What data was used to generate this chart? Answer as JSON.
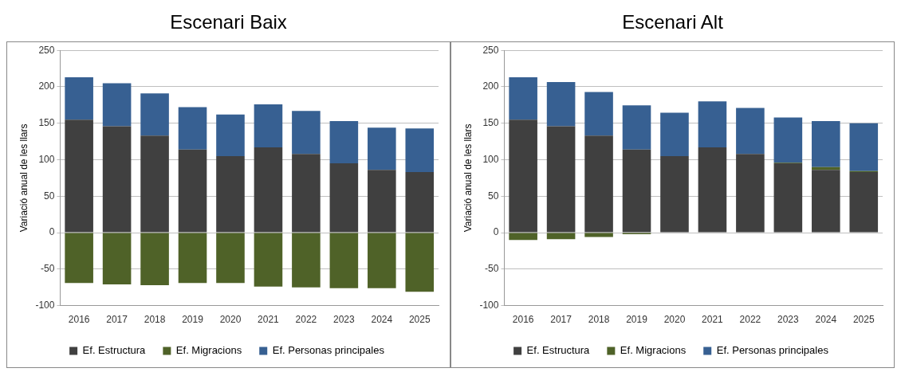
{
  "chart_data": [
    {
      "type": "bar",
      "title": "Escenari Baix",
      "ylabel": "Variació anual de les llars",
      "categories": [
        "2016",
        "2017",
        "2018",
        "2019",
        "2020",
        "2021",
        "2022",
        "2023",
        "2024",
        "2025"
      ],
      "stacked": true,
      "series": [
        {
          "name": "Ef. Estructura",
          "color": "#404040",
          "values": [
            155,
            146,
            133,
            114,
            105,
            117,
            108,
            95,
            86,
            83
          ]
        },
        {
          "name": "Ef. Migracions",
          "color": "#4f6228",
          "values": [
            -69,
            -71,
            -72,
            -69,
            -69,
            -74,
            -75,
            -76,
            -76,
            -81
          ]
        },
        {
          "name": "Ef. Personas principales",
          "color": "#376092",
          "values": [
            58,
            59,
            58,
            58,
            57,
            59,
            59,
            58,
            58,
            60
          ]
        }
      ],
      "ylim": [
        -100,
        250
      ],
      "yticks": [
        -100,
        -50,
        0,
        50,
        100,
        150,
        200,
        250
      ],
      "grid": "y",
      "legend": "bottom"
    },
    {
      "type": "bar",
      "title": "Escenari Alt",
      "ylabel": "Variació anual de les llars",
      "categories": [
        "2016",
        "2017",
        "2018",
        "2019",
        "2020",
        "2021",
        "2022",
        "2023",
        "2024",
        "2025"
      ],
      "stacked": true,
      "series": [
        {
          "name": "Ef. Estructura",
          "color": "#404040",
          "values": [
            155,
            146,
            133,
            114,
            105,
            117,
            108,
            95,
            86,
            83
          ]
        },
        {
          "name": "Ef. Migracions",
          "color": "#4f6228",
          "values": [
            -10,
            -9,
            -6,
            -2,
            0,
            -0.5,
            0,
            1,
            4,
            1.5
          ]
        },
        {
          "name": "Ef. Personas principales",
          "color": "#376092",
          "values": [
            58,
            60.5,
            60,
            60.5,
            59.5,
            63,
            63,
            62,
            63,
            65.5
          ]
        }
      ],
      "ylim": [
        -100,
        250
      ],
      "yticks": [
        -100,
        -50,
        0,
        50,
        100,
        150,
        200,
        250
      ],
      "grid": "y",
      "legend": "bottom"
    }
  ]
}
